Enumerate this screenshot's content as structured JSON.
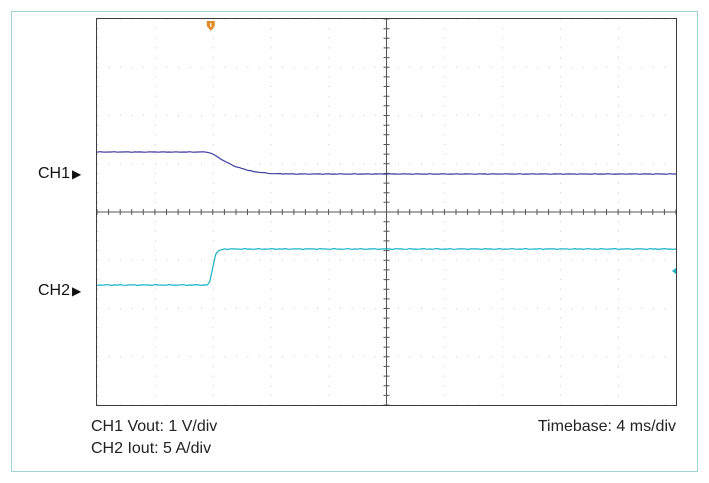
{
  "chart_data": {
    "type": "line",
    "title": "",
    "grid": true,
    "divisions": {
      "x": 10,
      "y": 8
    },
    "series": [
      {
        "name": "CH1",
        "label": "CH1",
        "color": "#3b3f9e",
        "scale_label": "CH1 Vout: 1 V/div",
        "x": [
          0,
          1.9,
          2.0,
          2.2,
          2.4,
          2.7,
          3.0,
          3.4,
          4.0,
          10
        ],
        "y": [
          0.55,
          0.55,
          0.5,
          0.32,
          0.18,
          0.06,
          0.01,
          0.0,
          0.0,
          0.0
        ]
      },
      {
        "name": "CH2",
        "label": "CH2",
        "color": "#17b3c6",
        "scale_label": "CH2 Iout: 5 A/div",
        "x": [
          0,
          1.9,
          1.95,
          2.0,
          2.05,
          2.1,
          2.2,
          10
        ],
        "y": [
          0.0,
          0.0,
          0.1,
          0.5,
          0.85,
          0.95,
          1.0,
          1.0
        ]
      }
    ],
    "timebase_label": "Timebase: 4 ms/div",
    "trigger_marker_color": "#e08a2a"
  }
}
